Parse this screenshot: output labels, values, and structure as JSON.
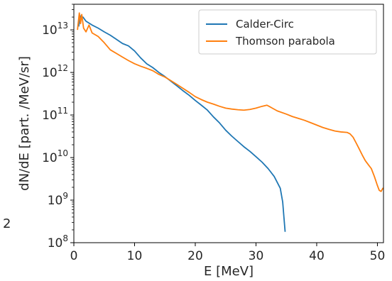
{
  "stray_text": "2",
  "chart_data": {
    "type": "line",
    "xlabel": "E [MeV]",
    "ylabel": "dN/dE [part. /MeV/sr]",
    "xscale": "linear",
    "yscale": "log",
    "xlim": [
      0,
      51
    ],
    "ylim": [
      100000000.0,
      40000000000000.0
    ],
    "x_ticks": [
      0,
      10,
      20,
      30,
      40,
      50
    ],
    "y_ticks": [
      100000000.0,
      1000000000.0,
      10000000000.0,
      100000000000.0,
      1000000000000.0,
      10000000000000.0
    ],
    "grid": false,
    "legend_position": "top-right",
    "series": [
      {
        "name": "Calder-Circ",
        "color": "#1f77b4",
        "points": [
          [
            0.8,
            12000000000000.0
          ],
          [
            1.0,
            22000000000000.0
          ],
          [
            1.2,
            18000000000000.0
          ],
          [
            1.5,
            20000000000000.0
          ],
          [
            2,
            16000000000000.0
          ],
          [
            3,
            13000000000000.0
          ],
          [
            4,
            11000000000000.0
          ],
          [
            5,
            9000000000000.0
          ],
          [
            6,
            7500000000000.0
          ],
          [
            7,
            6000000000000.0
          ],
          [
            8,
            4800000000000.0
          ],
          [
            9,
            4200000000000.0
          ],
          [
            10,
            3200000000000.0
          ],
          [
            11,
            2200000000000.0
          ],
          [
            12,
            1600000000000.0
          ],
          [
            13,
            1300000000000.0
          ],
          [
            14,
            1000000000000.0
          ],
          [
            15,
            800000000000.0
          ],
          [
            16,
            620000000000.0
          ],
          [
            17,
            480000000000.0
          ],
          [
            18,
            370000000000.0
          ],
          [
            19,
            290000000000.0
          ],
          [
            20,
            220000000000.0
          ],
          [
            21,
            170000000000.0
          ],
          [
            22,
            130000000000.0
          ],
          [
            23,
            90000000000.0
          ],
          [
            24,
            65000000000.0
          ],
          [
            25,
            44000000000.0
          ],
          [
            26,
            32000000000.0
          ],
          [
            27,
            24000000000.0
          ],
          [
            28,
            18000000000.0
          ],
          [
            29,
            14000000000.0
          ],
          [
            30,
            10500000000.0
          ],
          [
            31,
            7800000000.0
          ],
          [
            32,
            5500000000.0
          ],
          [
            33,
            3600000000.0
          ],
          [
            34,
            1900000000.0
          ],
          [
            34.4,
            900000000.0
          ],
          [
            34.6,
            400000000.0
          ],
          [
            34.8,
            180000000.0
          ]
        ]
      },
      {
        "name": "Thomson parabola",
        "color": "#ff7f0e",
        "points": [
          [
            0.6,
            10000000000000.0
          ],
          [
            0.9,
            25000000000000.0
          ],
          [
            1.1,
            14000000000000.0
          ],
          [
            1.3,
            23000000000000.0
          ],
          [
            1.6,
            11000000000000.0
          ],
          [
            2,
            9000000000000.0
          ],
          [
            2.5,
            13000000000000.0
          ],
          [
            3,
            8500000000000.0
          ],
          [
            4,
            7000000000000.0
          ],
          [
            5,
            5000000000000.0
          ],
          [
            6,
            3400000000000.0
          ],
          [
            7,
            2800000000000.0
          ],
          [
            8,
            2300000000000.0
          ],
          [
            9,
            1900000000000.0
          ],
          [
            10,
            1600000000000.0
          ],
          [
            11,
            1400000000000.0
          ],
          [
            12,
            1250000000000.0
          ],
          [
            13,
            1100000000000.0
          ],
          [
            14,
            900000000000.0
          ],
          [
            15,
            780000000000.0
          ],
          [
            16,
            640000000000.0
          ],
          [
            17,
            520000000000.0
          ],
          [
            18,
            420000000000.0
          ],
          [
            19,
            340000000000.0
          ],
          [
            20,
            270000000000.0
          ],
          [
            21,
            230000000000.0
          ],
          [
            22,
            200000000000.0
          ],
          [
            23,
            180000000000.0
          ],
          [
            24,
            160000000000.0
          ],
          [
            25,
            145000000000.0
          ],
          [
            26,
            138000000000.0
          ],
          [
            27,
            133000000000.0
          ],
          [
            28,
            130000000000.0
          ],
          [
            29,
            135000000000.0
          ],
          [
            30,
            145000000000.0
          ],
          [
            31,
            160000000000.0
          ],
          [
            31.8,
            170000000000.0
          ],
          [
            32.5,
            150000000000.0
          ],
          [
            33.5,
            125000000000.0
          ],
          [
            35,
            105000000000.0
          ],
          [
            36,
            92000000000.0
          ],
          [
            37,
            83000000000.0
          ],
          [
            38,
            75000000000.0
          ],
          [
            39,
            66000000000.0
          ],
          [
            40,
            58000000000.0
          ],
          [
            41,
            51000000000.0
          ],
          [
            42,
            46000000000.0
          ],
          [
            43,
            42000000000.0
          ],
          [
            44,
            40000000000.0
          ],
          [
            45,
            39000000000.0
          ],
          [
            45.5,
            36000000000.0
          ],
          [
            46,
            30000000000.0
          ],
          [
            46.5,
            22000000000.0
          ],
          [
            47,
            16000000000.0
          ],
          [
            47.5,
            11500000000.0
          ],
          [
            48,
            8500000000.0
          ],
          [
            48.5,
            6800000000.0
          ],
          [
            49,
            5500000000.0
          ],
          [
            49.5,
            3600000000.0
          ],
          [
            50,
            2200000000.0
          ],
          [
            50.3,
            1700000000.0
          ],
          [
            50.6,
            1600000000.0
          ],
          [
            50.9,
            1900000000.0
          ],
          [
            51,
            1800000000.0
          ]
        ]
      }
    ]
  }
}
